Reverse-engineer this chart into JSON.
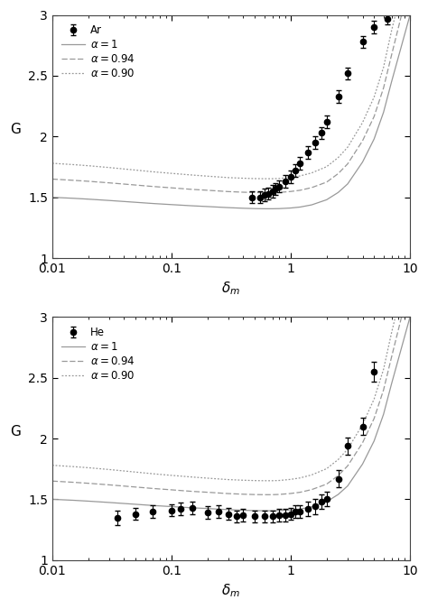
{
  "xlim": [
    0.01,
    10
  ],
  "ylim": [
    1,
    3
  ],
  "yticks": [
    1.0,
    1.5,
    2.0,
    2.5,
    3.0
  ],
  "xlabel": "$\\delta_m$",
  "ylabel": "G",
  "ar_data": {
    "x": [
      0.47,
      0.55,
      0.6,
      0.65,
      0.7,
      0.75,
      0.8,
      0.9,
      1.0,
      1.1,
      1.2,
      1.4,
      1.6,
      1.8,
      2.0,
      2.5,
      3.0,
      4.0,
      5.0,
      6.5
    ],
    "y": [
      1.5,
      1.5,
      1.52,
      1.53,
      1.55,
      1.57,
      1.59,
      1.63,
      1.67,
      1.72,
      1.78,
      1.87,
      1.95,
      2.03,
      2.12,
      2.33,
      2.52,
      2.78,
      2.9,
      2.97
    ],
    "yerr": [
      0.05,
      0.05,
      0.05,
      0.05,
      0.05,
      0.05,
      0.05,
      0.05,
      0.05,
      0.05,
      0.05,
      0.05,
      0.05,
      0.05,
      0.05,
      0.05,
      0.05,
      0.05,
      0.05,
      0.05
    ]
  },
  "he_data": {
    "x": [
      0.035,
      0.05,
      0.07,
      0.1,
      0.12,
      0.15,
      0.2,
      0.25,
      0.3,
      0.35,
      0.4,
      0.5,
      0.6,
      0.7,
      0.8,
      0.9,
      1.0,
      1.1,
      1.2,
      1.4,
      1.6,
      1.8,
      2.0,
      2.5,
      3.0,
      4.0,
      5.0
    ],
    "y": [
      1.35,
      1.38,
      1.4,
      1.41,
      1.42,
      1.43,
      1.39,
      1.4,
      1.38,
      1.36,
      1.37,
      1.36,
      1.36,
      1.36,
      1.37,
      1.37,
      1.38,
      1.4,
      1.4,
      1.42,
      1.44,
      1.48,
      1.5,
      1.67,
      1.94,
      2.1,
      2.55
    ],
    "yerr": [
      0.06,
      0.05,
      0.05,
      0.05,
      0.05,
      0.05,
      0.05,
      0.05,
      0.05,
      0.05,
      0.05,
      0.05,
      0.05,
      0.05,
      0.05,
      0.05,
      0.05,
      0.05,
      0.05,
      0.06,
      0.06,
      0.06,
      0.06,
      0.07,
      0.07,
      0.07,
      0.08
    ]
  },
  "theory_x": [
    0.01,
    0.015,
    0.02,
    0.03,
    0.05,
    0.07,
    0.1,
    0.15,
    0.2,
    0.3,
    0.4,
    0.5,
    0.6,
    0.7,
    0.8,
    1.0,
    1.2,
    1.5,
    2.0,
    2.5,
    3.0,
    4.0,
    5.0,
    6.0,
    7.0,
    10.0
  ],
  "alpha1_ar": [
    1.5,
    1.492,
    1.485,
    1.474,
    1.459,
    1.449,
    1.44,
    1.43,
    1.424,
    1.415,
    1.41,
    1.407,
    1.406,
    1.406,
    1.407,
    1.412,
    1.42,
    1.438,
    1.48,
    1.54,
    1.61,
    1.79,
    1.98,
    2.2,
    2.45,
    3.0
  ],
  "alpha094_ar": [
    1.65,
    1.64,
    1.632,
    1.619,
    1.601,
    1.589,
    1.578,
    1.565,
    1.558,
    1.547,
    1.542,
    1.539,
    1.538,
    1.538,
    1.54,
    1.548,
    1.558,
    1.58,
    1.625,
    1.695,
    1.775,
    1.965,
    2.165,
    2.4,
    2.67,
    3.28
  ],
  "alpha090_ar": [
    1.78,
    1.769,
    1.76,
    1.745,
    1.724,
    1.71,
    1.697,
    1.683,
    1.674,
    1.662,
    1.657,
    1.654,
    1.653,
    1.653,
    1.655,
    1.664,
    1.676,
    1.701,
    1.752,
    1.827,
    1.912,
    2.115,
    2.325,
    2.57,
    2.87,
    3.5
  ],
  "alpha1_he": [
    1.5,
    1.492,
    1.485,
    1.474,
    1.459,
    1.449,
    1.44,
    1.43,
    1.424,
    1.415,
    1.41,
    1.407,
    1.406,
    1.406,
    1.407,
    1.412,
    1.42,
    1.438,
    1.48,
    1.54,
    1.61,
    1.79,
    1.98,
    2.2,
    2.45,
    3.0
  ],
  "alpha094_he": [
    1.65,
    1.64,
    1.632,
    1.619,
    1.601,
    1.589,
    1.578,
    1.565,
    1.558,
    1.547,
    1.542,
    1.539,
    1.538,
    1.538,
    1.54,
    1.548,
    1.558,
    1.58,
    1.625,
    1.695,
    1.775,
    1.965,
    2.165,
    2.4,
    2.67,
    3.28
  ],
  "alpha090_he": [
    1.78,
    1.769,
    1.76,
    1.745,
    1.724,
    1.71,
    1.697,
    1.683,
    1.674,
    1.662,
    1.657,
    1.654,
    1.653,
    1.653,
    1.655,
    1.664,
    1.676,
    1.701,
    1.752,
    1.827,
    1.912,
    2.115,
    2.325,
    2.57,
    2.87,
    3.5
  ],
  "line_color": "#999999",
  "dot_color": "#000000",
  "bg_color": "#ffffff",
  "legend_ar": [
    "Ar",
    "$\\alpha = 1$",
    "$\\alpha = 0.94$",
    "$\\alpha = 0.90$"
  ],
  "legend_he": [
    "He",
    "$\\alpha = 1$",
    "$\\alpha = 0.94$",
    "$\\alpha = 0.90$"
  ]
}
